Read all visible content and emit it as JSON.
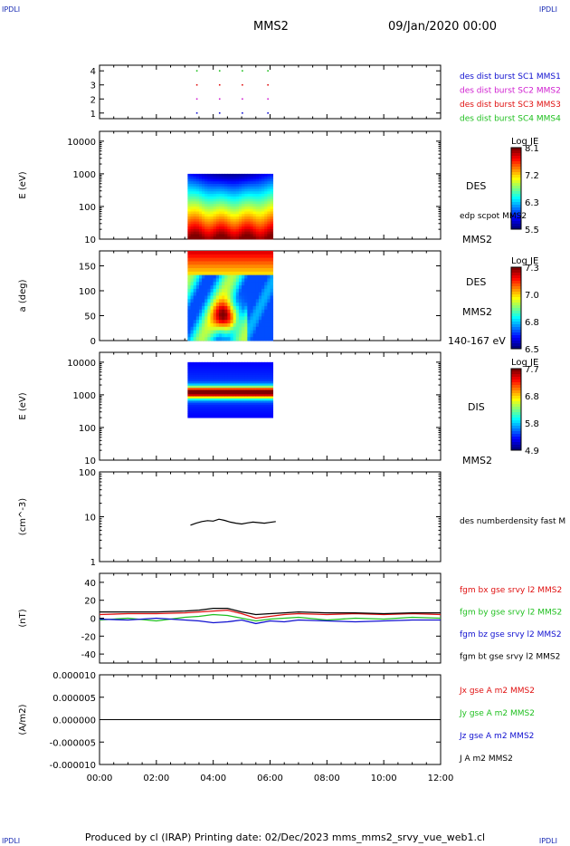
{
  "header": {
    "logo_left": "IPDLI",
    "logo_right": "IPDLI",
    "spacecraft": "MMS2",
    "date": "09/Jan/2020 00:00"
  },
  "footer": {
    "text": "Produced by cl (IRAP)   Printing date: 02/Dec/2023   mms_mms2_srvy_vue_web1.cl",
    "logo_left": "IPDLI",
    "logo_right": "IPDLI"
  },
  "time_axis": {
    "ticks": [
      "00:00",
      "02:00",
      "04:00",
      "06:00",
      "08:00",
      "10:00",
      "12:00"
    ],
    "range_hours": [
      0,
      12
    ]
  },
  "colors": {
    "mms1": "#1010d0",
    "mms2": "#d020d0",
    "mms3": "#e01010",
    "mms4": "#20c020",
    "bx": "#e01010",
    "by": "#20c020",
    "bz": "#1010d0",
    "bt": "#000000"
  },
  "chart_data": [
    {
      "type": "scatter",
      "panel": "burst",
      "yticks": [
        "4",
        "3",
        "2",
        "1"
      ],
      "ylim": [
        0.6,
        4.4
      ],
      "labels": [
        {
          "text": "des dist burst SC1 MMS1",
          "color": "#1010d0"
        },
        {
          "text": "des dist burst SC2 MMS2",
          "color": "#d020d0"
        },
        {
          "text": "des dist burst SC3 MMS3",
          "color": "#e01010"
        },
        {
          "text": "des dist burst SC4 MMS4",
          "color": "#20c020"
        }
      ],
      "series": [
        {
          "y": 4,
          "color": "#20c020",
          "x_hours": [
            3.4,
            4.2,
            5.0,
            5.9
          ]
        },
        {
          "y": 3,
          "color": "#e01010",
          "x_hours": [
            3.4,
            4.2,
            5.0,
            5.9
          ]
        },
        {
          "y": 2,
          "color": "#d020d0",
          "x_hours": [
            3.4,
            4.2,
            5.0,
            5.9
          ]
        },
        {
          "y": 1,
          "color": "#1010d0",
          "x_hours": [
            3.4,
            4.2,
            5.0,
            5.9
          ]
        }
      ]
    },
    {
      "type": "heatmap",
      "panel": "des_energy",
      "ylabel": "E (eV)",
      "yscale": "log",
      "ylim": [
        10,
        20000
      ],
      "yticks": [
        "10000",
        "1000",
        "100",
        "10"
      ],
      "x_range_hours": [
        3.1,
        6.1
      ],
      "y_range": [
        10,
        1000
      ],
      "colorbar": {
        "title": "Log JE",
        "ticks": [
          "8.1",
          "7.2",
          "6.3",
          "5.5"
        ]
      },
      "labels": [
        "DES",
        "edp scpot MMS2",
        "MMS2"
      ]
    },
    {
      "type": "heatmap",
      "panel": "des_pitch",
      "ylabel": "a (deg)",
      "ylim": [
        0,
        180
      ],
      "yticks": [
        "150",
        "100",
        "50",
        "0"
      ],
      "x_range_hours": [
        3.1,
        6.1
      ],
      "colorbar": {
        "title": "Log JE",
        "ticks": [
          "7.3",
          "7.0",
          "6.8",
          "6.5"
        ]
      },
      "labels": [
        "DES",
        "MMS2",
        "140-167 eV"
      ]
    },
    {
      "type": "heatmap",
      "panel": "dis_energy",
      "ylabel": "E (eV)",
      "yscale": "log",
      "ylim": [
        10,
        20000
      ],
      "yticks": [
        "10000",
        "1000",
        "100",
        "10"
      ],
      "x_range_hours": [
        3.1,
        6.1
      ],
      "y_range": [
        200,
        10000
      ],
      "colorbar": {
        "title": "Log JE",
        "ticks": [
          "7.7",
          "6.8",
          "5.8",
          "4.9"
        ]
      },
      "labels": [
        "DIS",
        "MMS2"
      ]
    },
    {
      "type": "line",
      "panel": "density",
      "ylabel": "(cm^-3)",
      "yscale": "log",
      "ylim": [
        1,
        100
      ],
      "yticks": [
        "100",
        "10",
        "1"
      ],
      "series": [
        {
          "name": "des numberdensity fast M",
          "color": "#000000",
          "x_hours": [
            3.2,
            3.4,
            3.6,
            3.8,
            4.0,
            4.2,
            4.4,
            4.6,
            4.8,
            5.0,
            5.2,
            5.4,
            5.6,
            5.8,
            6.0,
            6.2
          ],
          "values": [
            6.5,
            7.2,
            7.8,
            8.2,
            8.0,
            8.8,
            8.3,
            7.6,
            7.2,
            6.9,
            7.3,
            7.6,
            7.4,
            7.2,
            7.5,
            7.8
          ]
        }
      ]
    },
    {
      "type": "line",
      "panel": "magnetic_field",
      "ylabel": "(nT)",
      "ylim": [
        -50,
        50
      ],
      "yticks": [
        "40",
        "20",
        "0",
        "-20",
        "-40"
      ],
      "series": [
        {
          "name": "fgm bx gse srvy l2 MMS2",
          "color": "#e01010",
          "x_hours": [
            0,
            1,
            2,
            3,
            3.5,
            4,
            4.5,
            5,
            5.5,
            6,
            6.5,
            7,
            8,
            9,
            10,
            11,
            12
          ],
          "values": [
            4,
            5,
            5,
            6,
            7,
            8,
            9,
            5,
            0,
            2,
            4,
            5,
            4,
            5,
            4,
            5,
            4
          ]
        },
        {
          "name": "fgm by gse srvy l2 MMS2",
          "color": "#20c020",
          "x_hours": [
            0,
            1,
            2,
            3,
            3.5,
            4,
            4.5,
            5,
            5.5,
            6,
            6.5,
            7,
            8,
            9,
            10,
            11,
            12
          ],
          "values": [
            -2,
            0,
            -3,
            1,
            2,
            4,
            3,
            0,
            -3,
            -1,
            0,
            1,
            -2,
            0,
            -1,
            1,
            0
          ]
        },
        {
          "name": "fgm bz gse srvy l2 MMS2",
          "color": "#1010d0",
          "x_hours": [
            0,
            1,
            2,
            3,
            3.5,
            4,
            4.5,
            5,
            5.5,
            6,
            6.5,
            7,
            8,
            9,
            10,
            11,
            12
          ],
          "values": [
            -1,
            -2,
            0,
            -2,
            -3,
            -5,
            -4,
            -2,
            -6,
            -3,
            -4,
            -2,
            -3,
            -4,
            -3,
            -2,
            -2
          ]
        },
        {
          "name": "fgm bt gse srvy l2 MMS2",
          "color": "#000000",
          "x_hours": [
            0,
            1,
            2,
            3,
            3.5,
            4,
            4.5,
            5,
            5.5,
            6,
            6.5,
            7,
            8,
            9,
            10,
            11,
            12
          ],
          "values": [
            7,
            7,
            7,
            8,
            9,
            11,
            11,
            7,
            4,
            5,
            6,
            7,
            6,
            6,
            5,
            6,
            6
          ]
        }
      ]
    },
    {
      "type": "line",
      "panel": "current_density",
      "ylabel": "(A/m2)",
      "ylim": [
        -1e-05,
        1e-05
      ],
      "yticks": [
        "0.000010",
        "0.000005",
        "0.000000",
        "-0.000005",
        "-0.000010"
      ],
      "series": [
        {
          "name": "Jx gse A m2 MMS2",
          "color": "#e01010",
          "x_hours": [
            0,
            12
          ],
          "values": [
            0,
            0
          ]
        },
        {
          "name": "Jy gse A m2 MMS2",
          "color": "#20c020",
          "x_hours": [
            0,
            12
          ],
          "values": [
            0,
            0
          ]
        },
        {
          "name": "Jz gse A m2 MMS2",
          "color": "#1010d0",
          "x_hours": [
            0,
            12
          ],
          "values": [
            0,
            0
          ]
        },
        {
          "name": "J A m2 MMS2",
          "color": "#000000",
          "x_hours": [
            0,
            12
          ],
          "values": [
            0,
            0
          ]
        }
      ]
    }
  ]
}
